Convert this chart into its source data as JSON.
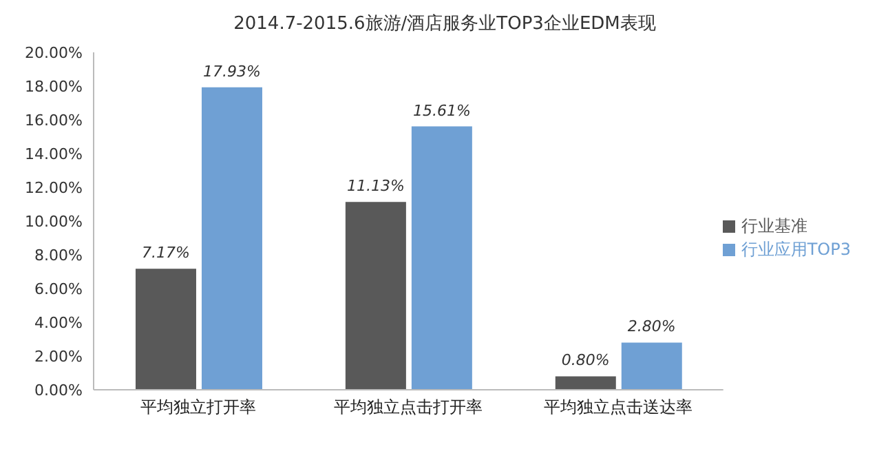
{
  "chart_data": {
    "type": "bar",
    "title": "2014.7-2015.6旅游/酒店服务业TOP3企业EDM表现",
    "categories": [
      "平均独立打开率",
      "平均独立点击打开率",
      "平均独立点击送达率"
    ],
    "series": [
      {
        "name": "行业基准",
        "color": "#595959",
        "values": [
          7.17,
          11.13,
          0.8
        ],
        "value_labels": [
          "7.17%",
          "11.13%",
          "0.80%"
        ]
      },
      {
        "name": "行业应用TOP3",
        "color": "#6fa0d4",
        "values": [
          17.93,
          15.61,
          2.8
        ],
        "value_labels": [
          "17.93%",
          "15.61%",
          "2.80%"
        ]
      }
    ],
    "ylim": [
      0,
      20
    ],
    "yticks": [
      {
        "value": 0,
        "label": "0.00%"
      },
      {
        "value": 2,
        "label": "2.00%"
      },
      {
        "value": 4,
        "label": "4.00%"
      },
      {
        "value": 6,
        "label": "6.00%"
      },
      {
        "value": 8,
        "label": "8.00%"
      },
      {
        "value": 10,
        "label": "10.00%"
      },
      {
        "value": 12,
        "label": "12.00%"
      },
      {
        "value": 14,
        "label": "14.00%"
      },
      {
        "value": 16,
        "label": "16.00%"
      },
      {
        "value": 18,
        "label": "18.00%"
      },
      {
        "value": 20,
        "label": "20.00%"
      }
    ],
    "grid": false,
    "legend": "right"
  }
}
